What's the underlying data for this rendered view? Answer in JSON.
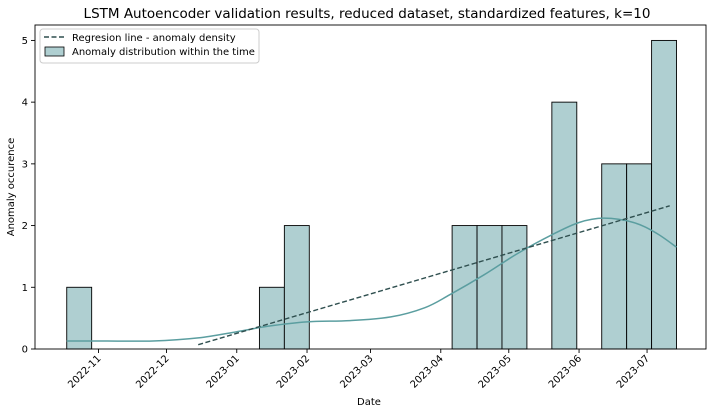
{
  "chart_data": {
    "type": "bar",
    "title": "LSTM Autoencoder validation results, reduced dataset, standardized features, k=10",
    "xlabel": "Date",
    "ylabel": "Anomaly occurence",
    "xlim": [
      "2022-10-04",
      "2023-07-27"
    ],
    "ylim": [
      0,
      5.25
    ],
    "yticks": [
      0,
      1,
      2,
      3,
      4,
      5
    ],
    "xticks": [
      "2022-11-01",
      "2022-12-01",
      "2023-01-01",
      "2023-02-01",
      "2023-03-01",
      "2023-04-01",
      "2023-05-01",
      "2023-06-01",
      "2023-07-01"
    ],
    "xtick_labels": [
      "2022-11",
      "2022-12",
      "2023-01",
      "2023-02",
      "2023-03",
      "2023-04",
      "2023-05",
      "2023-06",
      "2023-07"
    ],
    "bins": [
      {
        "start": "2022-10-18",
        "end": "2022-10-29",
        "count": 1
      },
      {
        "start": "2023-01-11",
        "end": "2023-01-22",
        "count": 1
      },
      {
        "start": "2023-01-22",
        "end": "2023-02-02",
        "count": 2
      },
      {
        "start": "2023-04-06",
        "end": "2023-04-17",
        "count": 2
      },
      {
        "start": "2023-04-17",
        "end": "2023-04-28",
        "count": 2
      },
      {
        "start": "2023-04-28",
        "end": "2023-05-09",
        "count": 2
      },
      {
        "start": "2023-05-20",
        "end": "2023-05-31",
        "count": 4
      },
      {
        "start": "2023-06-11",
        "end": "2023-06-22",
        "count": 3
      },
      {
        "start": "2023-06-22",
        "end": "2023-07-03",
        "count": 3
      },
      {
        "start": "2023-07-03",
        "end": "2023-07-14",
        "count": 5
      }
    ],
    "regression_line": {
      "x": [
        "2022-12-15",
        "2023-07-11"
      ],
      "y": [
        0.07,
        2.32
      ]
    },
    "density_curve": {
      "x": [
        "2022-10-18",
        "2022-11-05",
        "2022-11-25",
        "2022-12-15",
        "2023-01-01",
        "2023-01-15",
        "2023-02-01",
        "2023-02-20",
        "2023-03-10",
        "2023-03-25",
        "2023-04-05",
        "2023-04-20",
        "2023-05-05",
        "2023-05-20",
        "2023-06-01",
        "2023-06-12",
        "2023-06-25",
        "2023-07-05",
        "2023-07-14"
      ],
      "y": [
        0.13,
        0.13,
        0.13,
        0.18,
        0.28,
        0.37,
        0.44,
        0.46,
        0.52,
        0.67,
        0.88,
        1.2,
        1.55,
        1.85,
        2.05,
        2.12,
        2.05,
        1.88,
        1.65
      ]
    },
    "legend": {
      "placement": "top-left",
      "entries": [
        "Regresion line - anomaly density",
        "Anomaly distribution within the time"
      ]
    },
    "colors": {
      "bar_fill": "#afcfd1",
      "bar_edge": "#000000",
      "kde": "#5b9ea0",
      "regression": "#2f4f4f"
    },
    "grid": false
  }
}
